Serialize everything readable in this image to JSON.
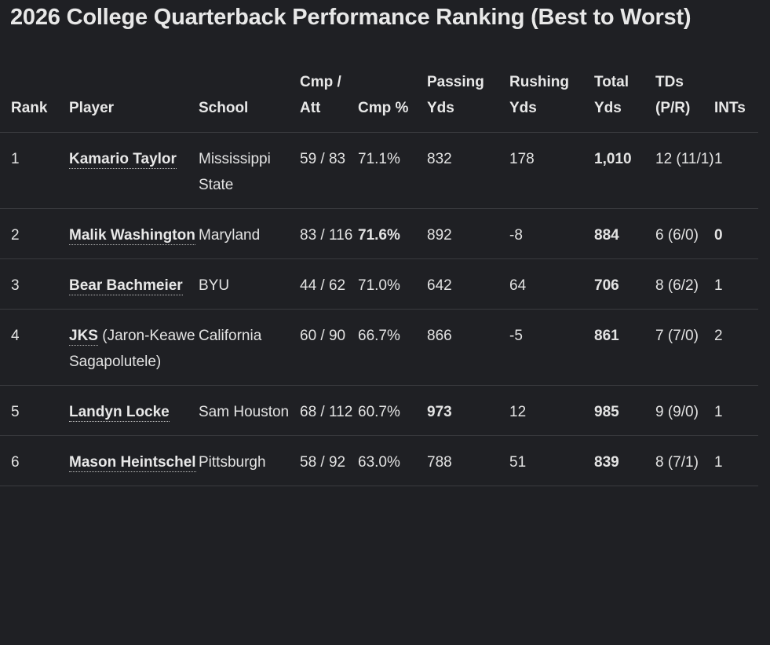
{
  "title": "2026 College Quarterback Performance Ranking (Best to Worst)",
  "columns": {
    "rank": "Rank",
    "player": "Player",
    "school": "School",
    "cmp_att": "Cmp / Att",
    "cmp_pct": "Cmp %",
    "passing_yds": "Passing Yds",
    "rushing_yds": "Rushing Yds",
    "total_yds": "Total Yds",
    "tds": "TDs (P/R)",
    "ints": "INTs"
  },
  "rows": [
    {
      "rank": "1",
      "player_link": "Kamario Taylor",
      "player_suffix": "",
      "school": "Mississippi State",
      "cmp_att": "59 / 83",
      "cmp_pct": "71.1%",
      "passing_yds": "832",
      "rushing_yds": "178",
      "total_yds": "1,010",
      "tds": "12 (11/1)",
      "ints": "1"
    },
    {
      "rank": "2",
      "player_link": "Malik Washington",
      "player_suffix": "",
      "school": "Maryland",
      "cmp_att": "83 / 116",
      "cmp_pct": "71.6%",
      "passing_yds": "892",
      "rushing_yds": "-8",
      "total_yds": "884",
      "tds": "6 (6/0)",
      "ints": "0"
    },
    {
      "rank": "3",
      "player_link": "Bear Bachmeier",
      "player_suffix": "",
      "school": "BYU",
      "cmp_att": "44 / 62",
      "cmp_pct": "71.0%",
      "passing_yds": "642",
      "rushing_yds": "64",
      "total_yds": "706",
      "tds": "8 (6/2)",
      "ints": "1"
    },
    {
      "rank": "4",
      "player_link": "JKS",
      "player_suffix": " (Jaron-Keawe Sagapolutele)",
      "school": "California",
      "cmp_att": "60 / 90",
      "cmp_pct": "66.7%",
      "passing_yds": "866",
      "rushing_yds": "-5",
      "total_yds": "861",
      "tds": "7 (7/0)",
      "ints": "2"
    },
    {
      "rank": "5",
      "player_link": "Landyn Locke",
      "player_suffix": "",
      "school": "Sam Houston",
      "cmp_att": "68 / 112",
      "cmp_pct": "60.7%",
      "passing_yds": "973",
      "rushing_yds": "12",
      "total_yds": "985",
      "tds": "9 (9/0)",
      "ints": "1"
    },
    {
      "rank": "6",
      "player_link": "Mason Heintschel",
      "player_suffix": "",
      "school": "Pittsburgh",
      "cmp_att": "58 / 92",
      "cmp_pct": "63.0%",
      "passing_yds": "788",
      "rushing_yds": "51",
      "total_yds": "839",
      "tds": "8 (7/1)",
      "ints": "1"
    }
  ],
  "colors": {
    "background": "#1f2024",
    "text": "#e3e3e3",
    "divider": "#3a3b3f"
  }
}
